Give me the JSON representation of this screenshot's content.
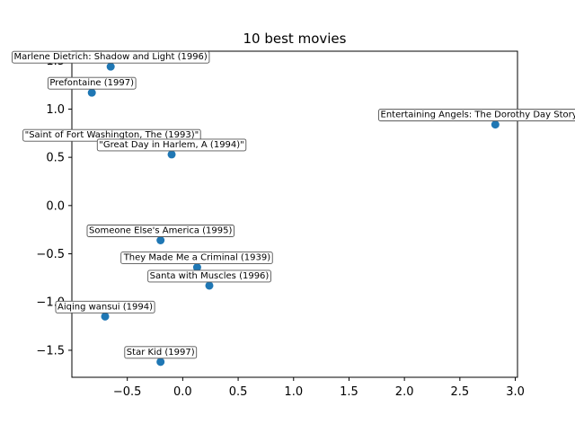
{
  "chart_data": {
    "type": "scatter",
    "title": "10 best movies",
    "xlabel": "",
    "ylabel": "",
    "xlim": [
      -1.0,
      3.02
    ],
    "ylim": [
      -1.78,
      1.6
    ],
    "xticks": [
      -0.5,
      0.0,
      0.5,
      1.0,
      1.5,
      2.0,
      2.5,
      3.0
    ],
    "xtick_labels": [
      "−0.5",
      "0.0",
      "0.5",
      "1.0",
      "1.5",
      "2.0",
      "2.5",
      "3.0"
    ],
    "yticks": [
      -1.5,
      -1.0,
      -0.5,
      0.0,
      0.5,
      1.0,
      1.5
    ],
    "ytick_labels": [
      "−1.5",
      "−1.0",
      "−0.5",
      "0.0",
      "0.5",
      "1.0",
      "1.5"
    ],
    "grid": false,
    "marker_color": "#1f77b4",
    "points": [
      {
        "label": "Marlene Dietrich: Shadow and Light (1996)",
        "x": -0.65,
        "y": 1.44
      },
      {
        "label": "Prefontaine (1997)",
        "x": -0.82,
        "y": 1.17
      },
      {
        "label": "Entertaining Angels: The Dorothy Day Story (1996)",
        "x": 2.82,
        "y": 0.84
      },
      {
        "label": "\"Saint of Fort Washington, The (1993)\"",
        "x": -0.64,
        "y": 0.63
      },
      {
        "label": "\"Great Day in Harlem, A (1994)\"",
        "x": -0.1,
        "y": 0.53
      },
      {
        "label": "Someone Else's America (1995)",
        "x": -0.2,
        "y": -0.36
      },
      {
        "label": "They Made Me a Criminal (1939)",
        "x": 0.13,
        "y": -0.64
      },
      {
        "label": "Santa with Muscles (1996)",
        "x": 0.24,
        "y": -0.83
      },
      {
        "label": "Aiqing wansui (1994)",
        "x": -0.7,
        "y": -1.15
      },
      {
        "label": "Star Kid (1997)",
        "x": -0.2,
        "y": -1.62
      }
    ]
  }
}
